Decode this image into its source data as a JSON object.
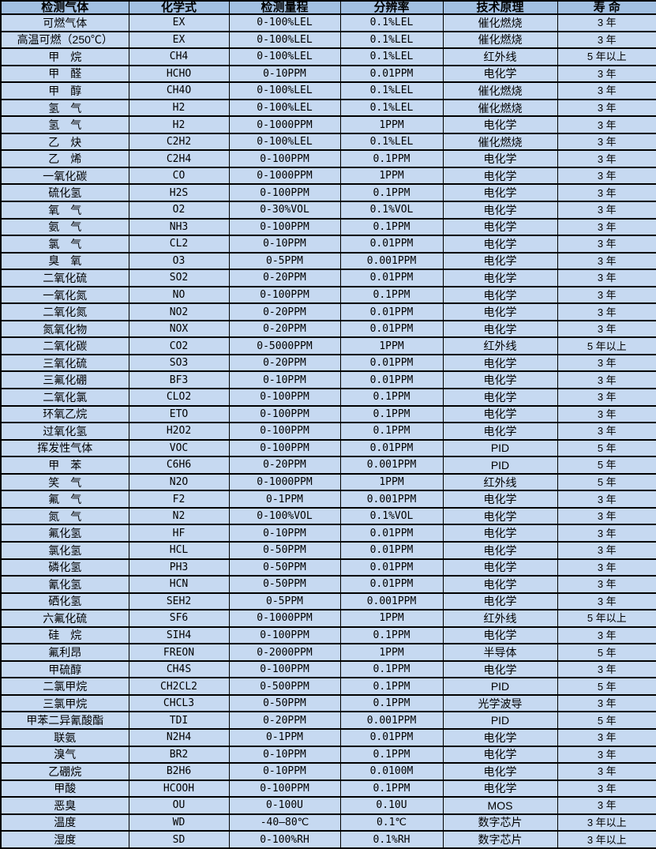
{
  "colors": {
    "header_bg": "#a2c0e2",
    "row_bg": "#c6d9f1",
    "border": "#000000",
    "text": "#000000"
  },
  "table": {
    "columns": [
      "检测气体",
      "化学式",
      "检测量程",
      "分辨率",
      "技术原理",
      "寿 命"
    ],
    "column_names": [
      "gas-name",
      "formula",
      "range",
      "resolution",
      "principle",
      "lifespan"
    ],
    "rows": [
      [
        "可燃气体",
        "EX",
        "0-100%LEL",
        "0.1%LEL",
        "催化燃烧",
        "3 年"
      ],
      [
        "高温可燃（250℃）",
        "EX",
        "0-100%LEL",
        "0.1%LEL",
        "催化燃烧",
        "3 年"
      ],
      [
        "甲　烷",
        "CH4",
        "0-100%LEL",
        "0.1%LEL",
        "红外线",
        "5 年以上"
      ],
      [
        "甲　醛",
        "HCHO",
        "0-10PPM",
        "0.01PPM",
        "电化学",
        "3 年"
      ],
      [
        "甲　醇",
        "CH4O",
        "0-100%LEL",
        "0.1%LEL",
        "催化燃烧",
        "3 年"
      ],
      [
        "氢　气",
        "H2",
        "0-100%LEL",
        "0.1%LEL",
        "催化燃烧",
        "3 年"
      ],
      [
        "氢　气",
        "H2",
        "0-1000PPM",
        "1PPM",
        "电化学",
        "3 年"
      ],
      [
        "乙　炔",
        "C2H2",
        "0-100%LEL",
        "0.1%LEL",
        "催化燃烧",
        "3 年"
      ],
      [
        "乙　烯",
        "C2H4",
        "0-100PPM",
        "0.1PPM",
        "电化学",
        "3 年"
      ],
      [
        "一氧化碳",
        "CO",
        "0-1000PPM",
        "1PPM",
        "电化学",
        "3 年"
      ],
      [
        "硫化氢",
        "H2S",
        "0-100PPM",
        "0.1PPM",
        "电化学",
        "3 年"
      ],
      [
        "氧　气",
        "O2",
        "0-30%VOL",
        "0.1%VOL",
        "电化学",
        "3 年"
      ],
      [
        "氨　气",
        "NH3",
        "0-100PPM",
        "0.1PPM",
        "电化学",
        "3 年"
      ],
      [
        "氯　气",
        "CL2",
        "0-10PPM",
        "0.01PPM",
        "电化学",
        "3 年"
      ],
      [
        "臭　氧",
        "O3",
        "0-5PPM",
        "0.001PPM",
        "电化学",
        "3 年"
      ],
      [
        "二氧化硫",
        "SO2",
        "0-20PPM",
        "0.01PPM",
        "电化学",
        "3 年"
      ],
      [
        "一氧化氮",
        "NO",
        "0-100PPM",
        "0.1PPM",
        "电化学",
        "3 年"
      ],
      [
        "二氧化氮",
        "NO2",
        "0-20PPM",
        "0.01PPM",
        "电化学",
        "3 年"
      ],
      [
        "氮氧化物",
        "NOX",
        "0-20PPM",
        "0.01PPM",
        "电化学",
        "3 年"
      ],
      [
        "二氧化碳",
        "CO2",
        "0-5000PPM",
        "1PPM",
        "红外线",
        "5 年以上"
      ],
      [
        "三氧化硫",
        "SO3",
        "0-20PPM",
        "0.01PPM",
        "电化学",
        "3 年"
      ],
      [
        "三氟化硼",
        "BF3",
        "0-10PPM",
        "0.01PPM",
        "电化学",
        "3 年"
      ],
      [
        "二氧化氯",
        "CLO2",
        "0-100PPM",
        "0.1PPM",
        "电化学",
        "3 年"
      ],
      [
        "环氧乙烷",
        "ETO",
        "0-100PPM",
        "0.1PPM",
        "电化学",
        "3 年"
      ],
      [
        "过氧化氢",
        "H2O2",
        "0-100PPM",
        "0.1PPM",
        "电化学",
        "3 年"
      ],
      [
        "挥发性气体",
        "VOC",
        "0-100PPM",
        "0.01PPM",
        "PID",
        "5 年"
      ],
      [
        "甲　苯",
        "C6H6",
        "0-20PPM",
        "0.001PPM",
        "PID",
        "5 年"
      ],
      [
        "笑　气",
        "N2O",
        "0-1000PPM",
        "1PPM",
        "红外线",
        "5 年"
      ],
      [
        "氟　气",
        "F2",
        "0-1PPM",
        "0.001PPM",
        "电化学",
        "3 年"
      ],
      [
        "氮　气",
        "N2",
        "0-100%VOL",
        "0.1%VOL",
        "电化学",
        "3 年"
      ],
      [
        "氟化氢",
        "HF",
        "0-10PPM",
        "0.01PPM",
        "电化学",
        "3 年"
      ],
      [
        "氯化氢",
        "HCL",
        "0-50PPM",
        "0.01PPM",
        "电化学",
        "3 年"
      ],
      [
        "磷化氢",
        "PH3",
        "0-50PPM",
        "0.01PPM",
        "电化学",
        "3 年"
      ],
      [
        "氰化氢",
        "HCN",
        "0-50PPM",
        "0.01PPM",
        "电化学",
        "3 年"
      ],
      [
        "硒化氢",
        "SEH2",
        "0-5PPM",
        "0.001PPM",
        "电化学",
        "3 年"
      ],
      [
        "六氟化硫",
        "SF6",
        "0-1000PPM",
        "1PPM",
        "红外线",
        "5 年以上"
      ],
      [
        "硅　烷",
        "SIH4",
        "0-100PPM",
        "0.1PPM",
        "电化学",
        "3 年"
      ],
      [
        "氟利昂",
        "FREON",
        "0-2000PPM",
        "1PPM",
        "半导体",
        "5 年"
      ],
      [
        "甲硫醇",
        "CH4S",
        "0-100PPM",
        "0.1PPM",
        "电化学",
        "3 年"
      ],
      [
        "二氯甲烷",
        "CH2CL2",
        "0-500PPM",
        "0.1PPM",
        "PID",
        "5 年"
      ],
      [
        "三氯甲烷",
        "CHCL3",
        "0-50PPM",
        "0.1PPM",
        "光学波导",
        "3 年"
      ],
      [
        "甲苯二异氰酸酯",
        "TDI",
        "0-20PPM",
        "0.001PPM",
        "PID",
        "5 年"
      ],
      [
        "联氨",
        "N2H4",
        "0-1PPM",
        "0.01PPM",
        "电化学",
        "3 年"
      ],
      [
        "溴气",
        "BR2",
        "0-10PPM",
        "0.1PPM",
        "电化学",
        "3 年"
      ],
      [
        "乙硼烷",
        "B2H6",
        "0-10PPM",
        "0.0100M",
        "电化学",
        "3 年"
      ],
      [
        "甲酸",
        "HCOOH",
        "0-100PPM",
        "0.1PPM",
        "电化学",
        "3 年"
      ],
      [
        "恶臭",
        "OU",
        "0-100U",
        "0.10U",
        "MOS",
        "3 年"
      ],
      [
        "温度",
        "WD",
        "-40—80℃",
        "0.1℃",
        "数字芯片",
        "3 年以上"
      ],
      [
        "湿度",
        "SD",
        "0-100%RH",
        "0.1%RH",
        "数字芯片",
        "3 年以上"
      ]
    ]
  }
}
